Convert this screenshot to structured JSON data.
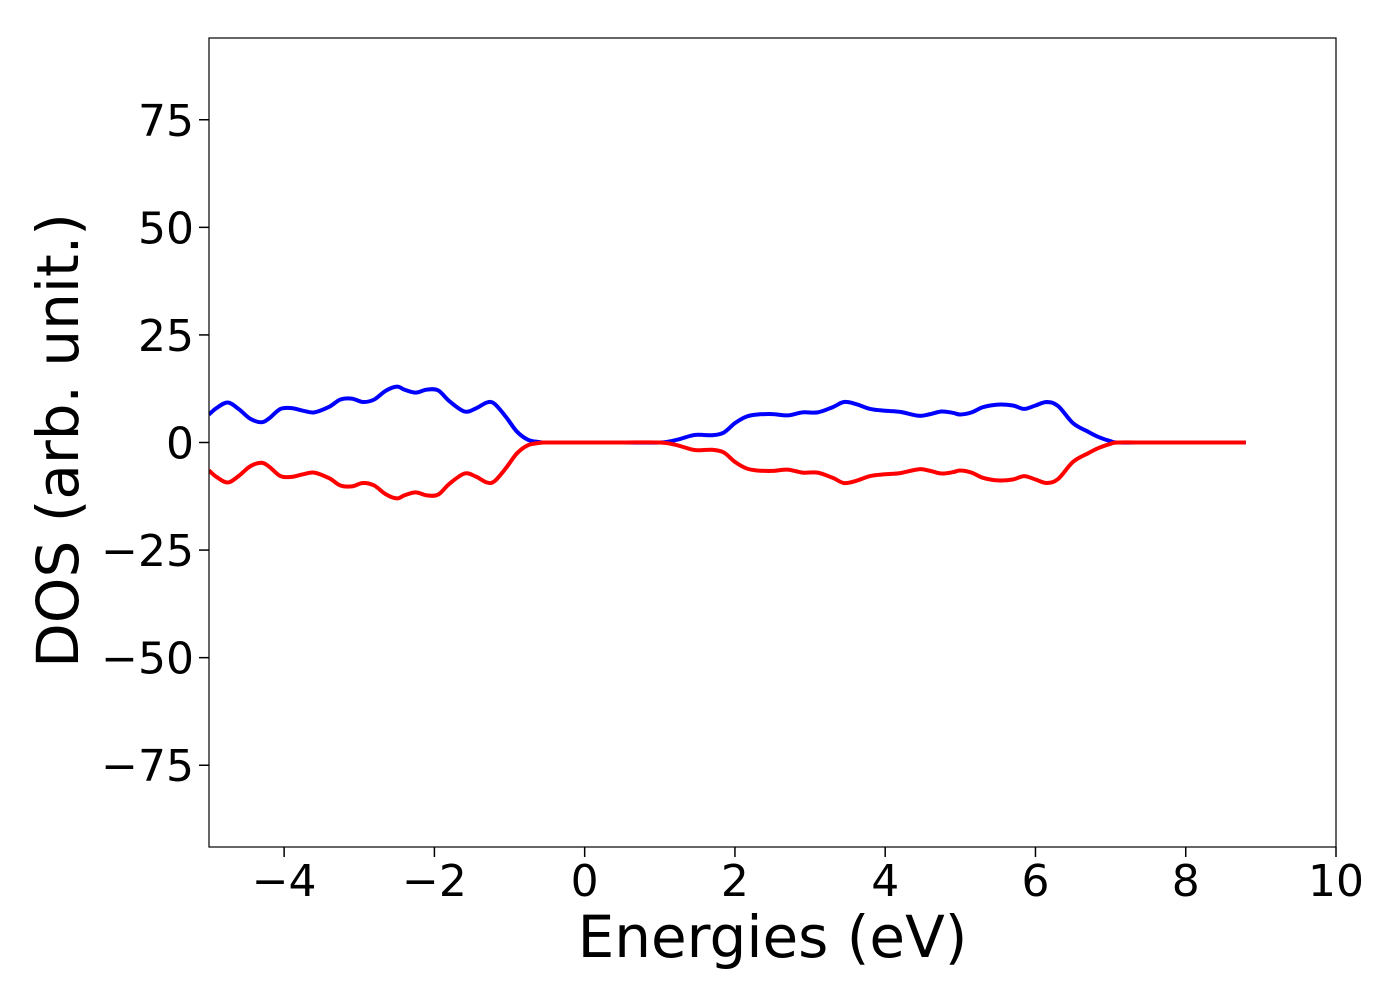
{
  "chart_data": {
    "type": "line",
    "title": "",
    "xlabel": "Energies (eV)",
    "ylabel": "DOS (arb. unit.)",
    "xlim": [
      -5,
      10
    ],
    "ylim": [
      -94,
      94
    ],
    "grid": false,
    "legend": "none",
    "x_ticks": [
      -4,
      -2,
      0,
      2,
      4,
      6,
      8,
      10
    ],
    "x_tick_labels": [
      "−4",
      "−2",
      "0",
      "2",
      "4",
      "6",
      "8",
      "10"
    ],
    "y_ticks": [
      75,
      50,
      25,
      0,
      -25,
      -50,
      -75
    ],
    "y_tick_labels": [
      "75",
      "50",
      "25",
      "0",
      "−25",
      "−50",
      "−75"
    ],
    "x": [
      -5.0,
      -4.9,
      -4.75,
      -4.6,
      -4.45,
      -4.3,
      -4.2,
      -4.05,
      -3.9,
      -3.75,
      -3.6,
      -3.4,
      -3.25,
      -3.1,
      -2.95,
      -2.8,
      -2.65,
      -2.5,
      -2.4,
      -2.25,
      -2.1,
      -1.95,
      -1.8,
      -1.6,
      -1.45,
      -1.3,
      -1.2,
      -1.05,
      -0.9,
      -0.75,
      -0.6,
      -0.5,
      0.0,
      0.5,
      1.0,
      1.2,
      1.4,
      1.5,
      1.7,
      1.85,
      2.0,
      2.15,
      2.3,
      2.5,
      2.7,
      2.9,
      3.1,
      3.3,
      3.45,
      3.6,
      3.8,
      4.0,
      4.2,
      4.45,
      4.6,
      4.75,
      4.9,
      5.0,
      5.15,
      5.3,
      5.5,
      5.7,
      5.85,
      6.0,
      6.15,
      6.3,
      6.5,
      6.7,
      6.85,
      7.0,
      7.1,
      7.5,
      8.0,
      8.5,
      8.8
    ],
    "series": [
      {
        "color": "#0000ff",
        "values": [
          6.5,
          8.0,
          9.3,
          7.7,
          5.5,
          4.7,
          5.6,
          7.8,
          8.0,
          7.4,
          7.0,
          8.3,
          10.0,
          10.2,
          9.4,
          10.0,
          12.0,
          13.0,
          12.3,
          11.6,
          12.3,
          12.1,
          9.6,
          7.2,
          7.9,
          9.3,
          9.0,
          6.0,
          2.5,
          0.6,
          0.1,
          0.0,
          0.0,
          0.0,
          0.0,
          0.5,
          1.5,
          1.8,
          1.7,
          2.3,
          4.5,
          6.0,
          6.5,
          6.6,
          6.3,
          7.0,
          7.0,
          8.2,
          9.4,
          9.0,
          7.8,
          7.4,
          7.1,
          6.2,
          6.6,
          7.2,
          6.9,
          6.5,
          7.0,
          8.2,
          8.8,
          8.6,
          7.8,
          8.6,
          9.4,
          8.5,
          4.5,
          2.5,
          1.2,
          0.3,
          0.0,
          0.0,
          0.0,
          0.0,
          0.0
        ]
      },
      {
        "color": "#ff0000",
        "values": [
          -6.5,
          -8.0,
          -9.3,
          -7.7,
          -5.5,
          -4.7,
          -5.6,
          -7.8,
          -8.0,
          -7.4,
          -7.0,
          -8.3,
          -10.0,
          -10.2,
          -9.4,
          -10.0,
          -12.0,
          -13.0,
          -12.3,
          -11.6,
          -12.3,
          -12.1,
          -9.6,
          -7.2,
          -7.9,
          -9.3,
          -9.0,
          -6.0,
          -2.5,
          -0.6,
          -0.1,
          0.0,
          0.0,
          0.0,
          0.0,
          -0.5,
          -1.5,
          -1.8,
          -1.7,
          -2.3,
          -4.5,
          -6.0,
          -6.5,
          -6.6,
          -6.3,
          -7.0,
          -7.0,
          -8.2,
          -9.4,
          -9.0,
          -7.8,
          -7.4,
          -7.1,
          -6.2,
          -6.6,
          -7.2,
          -6.9,
          -6.5,
          -7.0,
          -8.2,
          -8.8,
          -8.6,
          -7.8,
          -8.6,
          -9.4,
          -8.5,
          -4.5,
          -2.5,
          -1.2,
          -0.3,
          0.0,
          0.0,
          0.0,
          0.0,
          0.0
        ]
      }
    ]
  }
}
